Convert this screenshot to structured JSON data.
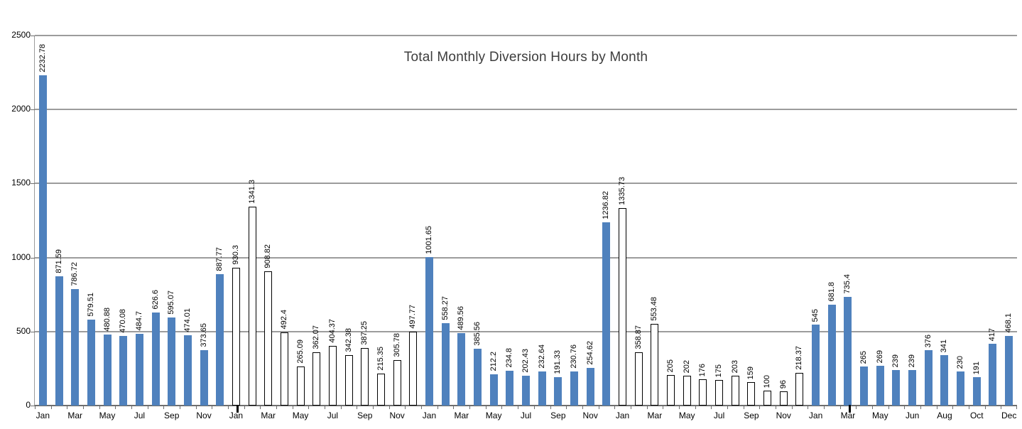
{
  "chart": {
    "title": "Total Monthly Diversion Hours by Month"
  },
  "colors": {
    "bar_blue": "#4F81BD",
    "bar_white_fill": "#FFFFFF",
    "bar_outline": "#000000",
    "gridline": "#9C9C9C",
    "axis": "#6E6E6E",
    "label_text": "#000000",
    "title_text": "#3D3D3D"
  },
  "chart_data": {
    "type": "bar",
    "title": "Total Monthly Diversion Hours by Month",
    "xlabel": "",
    "ylabel": "",
    "ylim": [
      0,
      2500
    ],
    "ytick_interval": 500,
    "yticks": [
      0,
      500,
      1000,
      1500,
      2000,
      2500
    ],
    "grid": true,
    "legend": "none",
    "bar_style_note": "bars alternate by year: solid blue fill, then white fill with black outline",
    "bars": [
      {
        "value": 2232.78,
        "fill": "blue",
        "tick": "Jan"
      },
      {
        "value": 871.59,
        "fill": "blue"
      },
      {
        "value": 786.72,
        "fill": "blue",
        "tick": "Mar"
      },
      {
        "value": 579.51,
        "fill": "blue"
      },
      {
        "value": 480.88,
        "fill": "blue",
        "tick": "May"
      },
      {
        "value": 470.08,
        "fill": "blue"
      },
      {
        "value": 484.7,
        "fill": "blue",
        "tick": "Jul"
      },
      {
        "value": 626.6,
        "fill": "blue"
      },
      {
        "value": 595.07,
        "fill": "blue",
        "tick": "Sep"
      },
      {
        "value": 474.01,
        "fill": "blue"
      },
      {
        "value": 373.65,
        "fill": "blue",
        "tick": "Nov"
      },
      {
        "value": 887.77,
        "fill": "blue"
      },
      {
        "value": 930.3,
        "fill": "white",
        "tick": "Jan",
        "axis_mark": true
      },
      {
        "value": 1341.3,
        "fill": "white"
      },
      {
        "value": 908.82,
        "fill": "white",
        "tick": "Mar"
      },
      {
        "value": 492.4,
        "fill": "white"
      },
      {
        "value": 265.09,
        "fill": "white",
        "tick": "May"
      },
      {
        "value": 362.07,
        "fill": "white"
      },
      {
        "value": 404.37,
        "fill": "white",
        "tick": "Jul"
      },
      {
        "value": 342.38,
        "fill": "white"
      },
      {
        "value": 387.25,
        "fill": "white",
        "tick": "Sep"
      },
      {
        "value": 215.35,
        "fill": "white"
      },
      {
        "value": 305.78,
        "fill": "white",
        "tick": "Nov"
      },
      {
        "value": 497.77,
        "fill": "white"
      },
      {
        "value": 1001.65,
        "fill": "blue",
        "tick": "Jan"
      },
      {
        "value": 558.27,
        "fill": "blue"
      },
      {
        "value": 489.56,
        "fill": "blue",
        "tick": "Mar"
      },
      {
        "value": 385.56,
        "fill": "blue"
      },
      {
        "value": 212.2,
        "fill": "blue",
        "tick": "May"
      },
      {
        "value": 234.8,
        "fill": "blue"
      },
      {
        "value": 202.43,
        "fill": "blue",
        "tick": "Jul"
      },
      {
        "value": 232.64,
        "fill": "blue"
      },
      {
        "value": 191.33,
        "fill": "blue",
        "tick": "Sep"
      },
      {
        "value": 230.76,
        "fill": "blue"
      },
      {
        "value": 254.62,
        "fill": "blue",
        "tick": "Nov"
      },
      {
        "value": 1236.82,
        "fill": "blue"
      },
      {
        "value": 1335.73,
        "fill": "white",
        "tick": "Jan"
      },
      {
        "value": 358.87,
        "fill": "white"
      },
      {
        "value": 553.48,
        "fill": "white",
        "tick": "Mar"
      },
      {
        "value": 205,
        "fill": "white"
      },
      {
        "value": 202,
        "fill": "white",
        "tick": "May"
      },
      {
        "value": 176,
        "fill": "white"
      },
      {
        "value": 175,
        "fill": "white",
        "tick": "Jul"
      },
      {
        "value": 203,
        "fill": "white"
      },
      {
        "value": 159,
        "fill": "white",
        "tick": "Sep"
      },
      {
        "value": 100,
        "fill": "white"
      },
      {
        "value": 96,
        "fill": "white",
        "tick": "Nov"
      },
      {
        "value": 218.37,
        "fill": "white"
      },
      {
        "value": 545,
        "fill": "blue",
        "tick": "Jan"
      },
      {
        "value": 681.8,
        "fill": "blue"
      },
      {
        "value": 735.4,
        "fill": "blue",
        "tick": "Mar",
        "axis_mark": true
      },
      {
        "value": 265,
        "fill": "blue"
      },
      {
        "value": 269,
        "fill": "blue",
        "tick": "May"
      },
      {
        "value": 239,
        "fill": "blue"
      },
      {
        "value": 239,
        "fill": "blue",
        "tick": "Jun"
      },
      {
        "value": 376,
        "fill": "blue"
      },
      {
        "value": 341,
        "fill": "blue",
        "tick": "Aug"
      },
      {
        "value": 230,
        "fill": "blue"
      },
      {
        "value": 191,
        "fill": "blue",
        "tick": "Oct"
      },
      {
        "value": 417,
        "fill": "blue"
      },
      {
        "value": 468.1,
        "fill": "blue",
        "tick": "Dec"
      }
    ]
  }
}
